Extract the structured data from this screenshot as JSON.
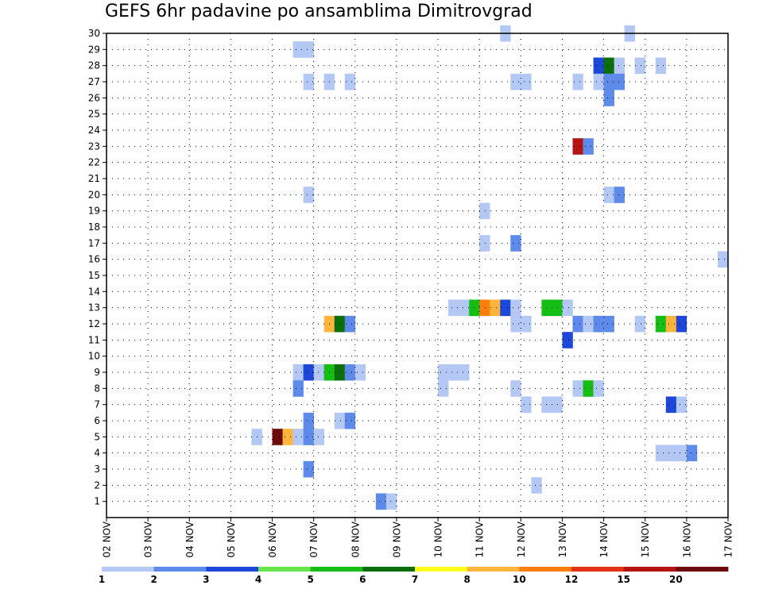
{
  "chart_data": {
    "type": "heatmap",
    "title": "GEFS 6hr padavine po ansamblima Dimitrovgrad",
    "xlabel": "",
    "ylabel": "",
    "x_ticks": [
      "02 NOV",
      "03 NOV",
      "04 NOV",
      "05 NOV",
      "06 NOV",
      "07 NOV",
      "08 NOV",
      "09 NOV",
      "10 NOV",
      "11 NOV",
      "12 NOV",
      "13 NOV",
      "14 NOV",
      "15 NOV",
      "16 NOV",
      "17 NOV"
    ],
    "y_ticks": [
      1,
      2,
      3,
      4,
      5,
      6,
      7,
      8,
      9,
      10,
      11,
      12,
      13,
      14,
      15,
      16,
      17,
      18,
      19,
      20,
      21,
      22,
      23,
      24,
      25,
      26,
      27,
      28,
      29,
      30
    ],
    "ylim": [
      0,
      30
    ],
    "x_steps": 60,
    "grid": true,
    "colorbar": {
      "labels": [
        "1",
        "2",
        "3",
        "4",
        "5",
        "6",
        "7",
        "8",
        "10",
        "12",
        "15",
        "20"
      ],
      "colors": [
        "#b3c8f5",
        "#5e8be9",
        "#1d47d8",
        "#66e44e",
        "#14be14",
        "#0a6e0a",
        "#ffff1c",
        "#ffb43c",
        "#ff7d0a",
        "#e13214",
        "#b41414",
        "#6e0a0a"
      ]
    },
    "cells": [
      [
        18,
        28,
        1
      ],
      [
        19,
        28,
        1
      ],
      [
        19,
        26,
        1
      ],
      [
        21,
        26,
        1
      ],
      [
        23,
        26,
        1
      ],
      [
        19,
        19,
        1
      ],
      [
        18,
        8,
        1
      ],
      [
        19,
        8,
        3
      ],
      [
        18,
        7,
        2
      ],
      [
        20,
        8,
        1
      ],
      [
        21,
        8,
        5
      ],
      [
        22,
        8,
        6
      ],
      [
        23,
        8,
        2
      ],
      [
        24,
        8,
        1
      ],
      [
        21,
        11,
        8
      ],
      [
        22,
        11,
        6
      ],
      [
        23,
        11,
        2
      ],
      [
        19,
        5,
        2
      ],
      [
        22,
        5,
        1
      ],
      [
        23,
        5,
        2
      ],
      [
        14,
        4,
        1
      ],
      [
        16,
        4,
        12
      ],
      [
        17,
        4,
        8
      ],
      [
        18,
        4,
        1
      ],
      [
        19,
        4,
        2
      ],
      [
        20,
        4,
        1
      ],
      [
        19,
        2,
        2
      ],
      [
        26,
        0,
        2
      ],
      [
        27,
        0,
        1
      ],
      [
        32,
        8,
        1
      ],
      [
        33,
        8,
        1
      ],
      [
        34,
        8,
        1
      ],
      [
        32,
        7,
        1
      ],
      [
        33,
        12,
        1
      ],
      [
        34,
        12,
        1
      ],
      [
        35,
        12,
        5
      ],
      [
        36,
        12,
        9
      ],
      [
        37,
        12,
        8
      ],
      [
        38,
        12,
        3
      ],
      [
        36,
        16,
        1
      ],
      [
        39,
        16,
        2
      ],
      [
        36,
        18,
        1
      ],
      [
        38,
        29,
        1
      ],
      [
        39,
        26,
        1
      ],
      [
        40,
        26,
        1
      ],
      [
        39,
        12,
        1
      ],
      [
        39,
        11,
        1
      ],
      [
        40,
        11,
        1
      ],
      [
        39,
        7,
        1
      ],
      [
        40,
        6,
        1
      ],
      [
        42,
        12,
        5
      ],
      [
        43,
        12,
        5
      ],
      [
        44,
        12,
        1
      ],
      [
        44,
        10,
        3
      ],
      [
        42,
        6,
        1
      ],
      [
        43,
        6,
        1
      ],
      [
        41,
        1,
        1
      ],
      [
        45,
        26,
        1
      ],
      [
        45,
        22,
        11
      ],
      [
        46,
        22,
        2
      ],
      [
        45,
        11,
        2
      ],
      [
        46,
        11,
        1
      ],
      [
        47,
        11,
        2
      ],
      [
        48,
        11,
        2
      ],
      [
        45,
        7,
        1
      ],
      [
        46,
        7,
        5
      ],
      [
        47,
        7,
        1
      ],
      [
        47,
        27,
        3
      ],
      [
        48,
        27,
        6
      ],
      [
        49,
        27,
        1
      ],
      [
        47,
        26,
        1
      ],
      [
        48,
        26,
        2
      ],
      [
        49,
        26,
        2
      ],
      [
        48,
        25,
        2
      ],
      [
        48,
        19,
        1
      ],
      [
        49,
        19,
        2
      ],
      [
        50,
        29,
        1
      ],
      [
        51,
        27,
        1
      ],
      [
        53,
        27,
        1
      ],
      [
        51,
        11,
        1
      ],
      [
        53,
        11,
        5
      ],
      [
        54,
        11,
        8
      ],
      [
        55,
        11,
        3
      ],
      [
        54,
        6,
        3
      ],
      [
        55,
        6,
        1
      ],
      [
        53,
        3,
        1
      ],
      [
        54,
        3,
        1
      ],
      [
        55,
        3,
        1
      ],
      [
        56,
        3,
        2
      ],
      [
        59,
        15,
        1
      ]
    ]
  }
}
